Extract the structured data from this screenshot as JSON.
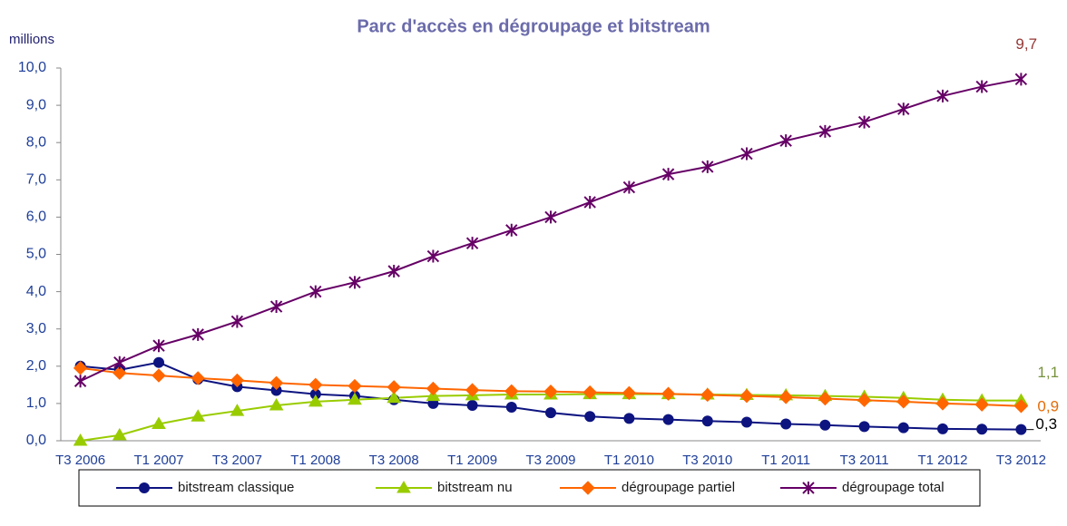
{
  "chart_data": {
    "type": "line",
    "title": "Parc d'accès en dégroupage et bitstream",
    "y_label": "millions",
    "categories": [
      "T3 2006",
      null,
      "T1 2007",
      null,
      "T3 2007",
      null,
      "T1 2008",
      null,
      "T3 2008",
      null,
      "T1 2009",
      null,
      "T3 2009",
      null,
      "T1 2010",
      null,
      "T3 2010",
      null,
      "T1 2011",
      null,
      "T3 2011",
      null,
      "T1 2012",
      null,
      "T3 2012"
    ],
    "ylim": [
      0,
      10
    ],
    "yticks": [
      {
        "value": 0,
        "label": "0,0"
      },
      {
        "value": 1,
        "label": "1,0"
      },
      {
        "value": 2,
        "label": "2,0"
      },
      {
        "value": 3,
        "label": "3,0"
      },
      {
        "value": 4,
        "label": "4,0"
      },
      {
        "value": 5,
        "label": "5,0"
      },
      {
        "value": 6,
        "label": "6,0"
      },
      {
        "value": 7,
        "label": "7,0"
      },
      {
        "value": 8,
        "label": "8,0"
      },
      {
        "value": 9,
        "label": "9,0"
      },
      {
        "value": 10,
        "label": "10,0"
      }
    ],
    "grid": false,
    "legend": "bottom",
    "series": [
      {
        "name": "bitstream classique",
        "color": "#0d1480",
        "marker": "circle",
        "label_color": "#000000",
        "values": [
          2.0,
          1.9,
          2.1,
          1.65,
          1.45,
          1.35,
          1.25,
          1.2,
          1.1,
          1.0,
          0.95,
          0.9,
          0.75,
          0.65,
          0.6,
          0.57,
          0.53,
          0.5,
          0.45,
          0.42,
          0.38,
          0.35,
          0.32,
          0.31,
          0.3
        ],
        "value_labels": [
          null,
          null,
          null,
          null,
          null,
          null,
          null,
          null,
          null,
          null,
          null,
          null,
          null,
          null,
          null,
          null,
          null,
          null,
          null,
          null,
          null,
          null,
          null,
          null,
          "0,3"
        ]
      },
      {
        "name": "bitstream nu",
        "color": "#99cc00",
        "marker": "triangle",
        "label_color": "#77933c",
        "values": [
          0.0,
          0.15,
          0.45,
          0.65,
          0.8,
          0.95,
          1.05,
          1.1,
          1.15,
          1.2,
          1.22,
          1.24,
          1.24,
          1.25,
          1.25,
          1.25,
          1.24,
          1.23,
          1.22,
          1.2,
          1.18,
          1.15,
          1.1,
          1.08,
          1.08
        ],
        "value_labels": [
          null,
          null,
          null,
          null,
          null,
          null,
          null,
          null,
          null,
          null,
          null,
          null,
          null,
          null,
          null,
          null,
          null,
          null,
          null,
          null,
          null,
          null,
          null,
          null,
          "1,1"
        ]
      },
      {
        "name": "dégroupage partiel",
        "color": "#ff6600",
        "marker": "diamond",
        "label_color": "#e46c0a",
        "values": [
          1.95,
          1.82,
          1.75,
          1.68,
          1.62,
          1.55,
          1.5,
          1.47,
          1.44,
          1.4,
          1.36,
          1.33,
          1.32,
          1.3,
          1.28,
          1.26,
          1.23,
          1.2,
          1.17,
          1.13,
          1.09,
          1.05,
          1.0,
          0.97,
          0.93
        ],
        "value_labels": [
          null,
          null,
          null,
          null,
          null,
          null,
          null,
          null,
          null,
          null,
          null,
          null,
          null,
          null,
          null,
          null,
          null,
          null,
          null,
          null,
          null,
          null,
          null,
          null,
          "0,9"
        ]
      },
      {
        "name": "dégroupage total",
        "color": "#660066",
        "marker": "star",
        "label_color": "#953735",
        "values": [
          1.6,
          2.1,
          2.55,
          2.85,
          3.2,
          3.6,
          4.0,
          4.25,
          4.55,
          4.95,
          5.3,
          5.65,
          6.0,
          6.4,
          6.8,
          7.15,
          7.35,
          7.7,
          8.05,
          8.3,
          8.55,
          8.9,
          9.25,
          9.5,
          9.7
        ],
        "value_labels": [
          null,
          null,
          null,
          null,
          null,
          null,
          null,
          null,
          null,
          null,
          null,
          null,
          null,
          null,
          null,
          null,
          null,
          null,
          null,
          null,
          null,
          null,
          null,
          null,
          "9,7"
        ]
      }
    ]
  }
}
